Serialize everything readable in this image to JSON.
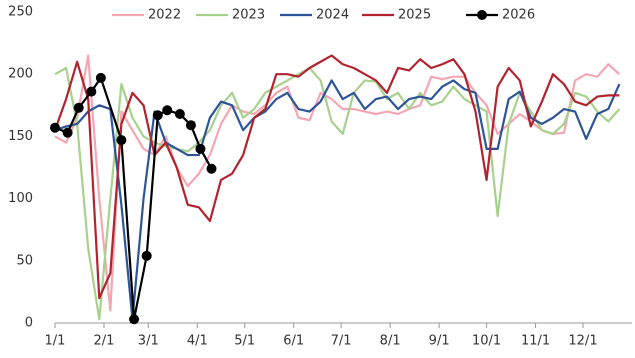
{
  "chart_data": {
    "type": "line",
    "x": [
      0,
      7,
      14,
      21,
      28,
      35,
      42,
      49,
      56,
      63,
      70,
      77,
      84,
      91,
      98,
      105,
      112,
      119,
      126,
      133,
      140,
      147,
      154,
      161,
      168,
      175,
      182,
      189,
      196,
      203,
      210,
      217,
      224,
      231,
      238,
      245,
      252,
      259,
      266,
      273,
      280,
      287,
      294,
      301,
      308,
      315,
      322,
      329,
      336,
      343,
      350,
      357
    ],
    "xlim": [
      0,
      365
    ],
    "xticks": [
      {
        "value": 0,
        "label": "1/1"
      },
      {
        "value": 31,
        "label": "2/1"
      },
      {
        "value": 59,
        "label": "3/1"
      },
      {
        "value": 90,
        "label": "4/1"
      },
      {
        "value": 120,
        "label": "5/1"
      },
      {
        "value": 151,
        "label": "6/1"
      },
      {
        "value": 181,
        "label": "7/1"
      },
      {
        "value": 212,
        "label": "8/1"
      },
      {
        "value": 243,
        "label": "9/1"
      },
      {
        "value": 273,
        "label": "10/1"
      },
      {
        "value": 304,
        "label": "11/1"
      },
      {
        "value": 334,
        "label": "12/1"
      }
    ],
    "ylim": [
      0,
      250
    ],
    "yticks": [
      0,
      50,
      100,
      150,
      200,
      250
    ],
    "legend": "top",
    "series": [
      {
        "name": "2022",
        "color": "#f4a7b3",
        "values": [
          150,
          145,
          165,
          215,
          100,
          10,
          170,
          155,
          140,
          135,
          150,
          125,
          110,
          120,
          135,
          160,
          175,
          170,
          168,
          175,
          185,
          190,
          165,
          163,
          185,
          180,
          172,
          172,
          170,
          168,
          170,
          168,
          172,
          175,
          198,
          196,
          198,
          198,
          185,
          175,
          152,
          160,
          168,
          162,
          155,
          152,
          153,
          195,
          200,
          198,
          208,
          200
        ]
      },
      {
        "name": "2023",
        "color": "#a8d18d",
        "values": [
          200,
          205,
          160,
          60,
          3,
          100,
          192,
          165,
          150,
          145,
          142,
          140,
          138,
          145,
          155,
          175,
          185,
          165,
          172,
          185,
          190,
          195,
          200,
          205,
          195,
          162,
          152,
          185,
          195,
          194,
          180,
          185,
          172,
          185,
          175,
          178,
          190,
          180,
          175,
          170,
          86,
          160,
          185,
          170,
          155,
          152,
          160,
          185,
          182,
          170,
          162,
          172
        ]
      },
      {
        "name": "2024",
        "color": "#2e5597",
        "values": [
          155,
          158,
          160,
          170,
          175,
          172,
          95,
          3,
          100,
          170,
          145,
          140,
          135,
          135,
          165,
          178,
          175,
          155,
          165,
          170,
          180,
          185,
          172,
          170,
          178,
          195,
          180,
          185,
          172,
          180,
          182,
          172,
          180,
          182,
          180,
          190,
          195,
          188,
          185,
          140,
          140,
          180,
          186,
          165,
          160,
          165,
          172,
          170,
          148,
          168,
          172,
          192
        ]
      },
      {
        "name": "2025",
        "color": "#b22330",
        "values": [
          155,
          180,
          210,
          180,
          20,
          40,
          160,
          185,
          175,
          135,
          145,
          125,
          95,
          93,
          82,
          115,
          120,
          135,
          165,
          172,
          200,
          200,
          198,
          205,
          210,
          215,
          208,
          205,
          200,
          195,
          185,
          205,
          203,
          212,
          205,
          208,
          212,
          200,
          170,
          115,
          190,
          205,
          195,
          158,
          178,
          200,
          192,
          178,
          175,
          182,
          183,
          183
        ]
      },
      {
        "name": "2026",
        "color": "#000000",
        "marker": "circle",
        "x": [
          0,
          8,
          15,
          23,
          29,
          42,
          50,
          58,
          65,
          71,
          79,
          86,
          92,
          99
        ],
        "values": [
          157,
          153,
          173,
          186,
          197,
          147,
          3,
          54,
          167,
          171,
          168,
          159,
          140,
          124
        ]
      }
    ]
  }
}
